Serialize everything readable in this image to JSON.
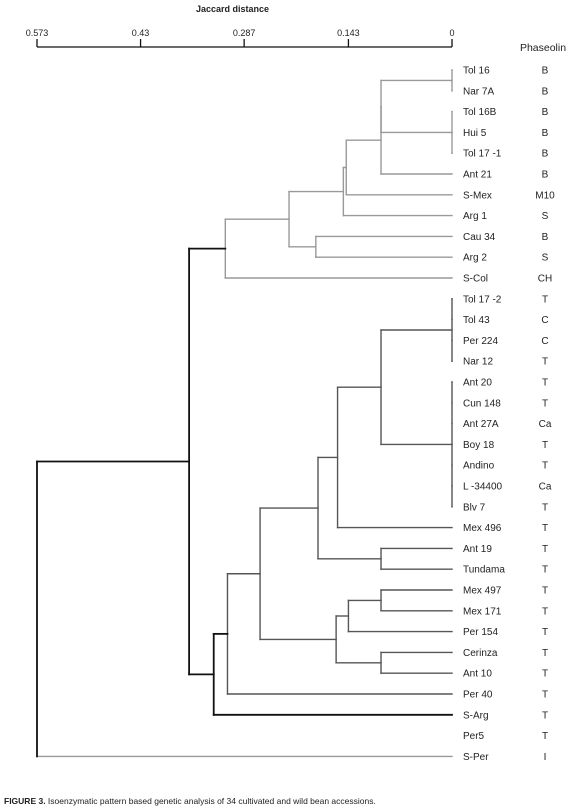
{
  "figure": {
    "axis_title": "Jaccard distance",
    "ticks": [
      "0.573",
      "0.43",
      "0.287",
      "0.143",
      "0"
    ],
    "phaseolin_header": "Phaseolin",
    "caption_label": "FIGURE 3.",
    "caption_text": " Isoenzymatic pattern based genetic analysis of 34 cultivated and wild bean accessions."
  },
  "chart_data": {
    "type": "dendrogram",
    "xlabel": "Jaccard distance",
    "xlim": [
      0.573,
      0
    ],
    "leaves": [
      {
        "name": "Tol 16",
        "phaseolin": "B"
      },
      {
        "name": "Nar 7A",
        "phaseolin": "B"
      },
      {
        "name": "Tol 16B",
        "phaseolin": "B"
      },
      {
        "name": "Hui 5",
        "phaseolin": "B"
      },
      {
        "name": "Tol 17  -1",
        "phaseolin": "B"
      },
      {
        "name": "Ant 21",
        "phaseolin": "B"
      },
      {
        "name": "S-Mex",
        "phaseolin": "M10"
      },
      {
        "name": "Arg 1",
        "phaseolin": "S"
      },
      {
        "name": "Cau 34",
        "phaseolin": "B"
      },
      {
        "name": "Arg 2",
        "phaseolin": "S"
      },
      {
        "name": "S-Col",
        "phaseolin": "CH"
      },
      {
        "name": "Tol 17  -2",
        "phaseolin": "T"
      },
      {
        "name": "Tol 43",
        "phaseolin": "C"
      },
      {
        "name": "Per 224",
        "phaseolin": "C"
      },
      {
        "name": "Nar 12",
        "phaseolin": "T"
      },
      {
        "name": "Ant 20",
        "phaseolin": "T"
      },
      {
        "name": "Cun 148",
        "phaseolin": "T"
      },
      {
        "name": "Ant 27A",
        "phaseolin": "Ca"
      },
      {
        "name": "Boy 18",
        "phaseolin": "T"
      },
      {
        "name": "Andino",
        "phaseolin": "T"
      },
      {
        "name": "L -34400",
        "phaseolin": "Ca"
      },
      {
        "name": "Blv 7",
        "phaseolin": "T"
      },
      {
        "name": "Mex 496",
        "phaseolin": "T"
      },
      {
        "name": "Ant 19",
        "phaseolin": "T"
      },
      {
        "name": "Tundama",
        "phaseolin": "T"
      },
      {
        "name": "Mex 497",
        "phaseolin": "T"
      },
      {
        "name": "Mex 171",
        "phaseolin": "T"
      },
      {
        "name": "Per 154",
        "phaseolin": "T"
      },
      {
        "name": "Cerinza",
        "phaseolin": "T"
      },
      {
        "name": "Ant 10",
        "phaseolin": "T"
      },
      {
        "name": "Per 40",
        "phaseolin": "T"
      },
      {
        "name": "S-Arg",
        "phaseolin": "T"
      },
      {
        "name": "Per5",
        "phaseolin": "T"
      },
      {
        "name": "S-Per",
        "phaseolin": "I"
      }
    ],
    "tree": {
      "d": 0.573,
      "color": "#111",
      "c": [
        {
          "d": 0.363,
          "color": "#111",
          "c": [
            {
              "d": 0.313,
              "color": "#999",
              "c": [
                {
                  "d": 0.225,
                  "color": "#999",
                  "c": [
                    {
                      "d": 0.15,
                      "color": "#999",
                      "c": [
                        {
                          "d": 0.146,
                          "color": "#999",
                          "c": [
                            {
                              "d": 0.098,
                              "color": "#999",
                              "c": [
                                {
                                  "d": 0.098,
                                  "color": "#999",
                                  "c": [
                                    {
                                      "d": 0.0,
                                      "color": "#999",
                                      "c": [
                                        0,
                                        1
                                      ]
                                    },
                                    {
                                      "d": 0.0,
                                      "color": "#999",
                                      "c": [
                                        2,
                                        3,
                                        4
                                      ]
                                    }
                                  ]
                                },
                                5
                              ]
                            },
                            6
                          ]
                        },
                        7
                      ]
                    },
                    {
                      "d": 0.188,
                      "color": "#999",
                      "c": [
                        8,
                        9
                      ]
                    }
                  ]
                },
                10
              ]
            },
            {
              "d": 0.329,
              "color": "#111",
              "c": [
                {
                  "d": 0.31,
                  "color": "#555",
                  "c": [
                    {
                      "d": 0.265,
                      "color": "#555",
                      "c": [
                        {
                          "d": 0.185,
                          "color": "#555",
                          "c": [
                            {
                              "d": 0.158,
                              "color": "#555",
                              "c": [
                                {
                                  "d": 0.098,
                                  "color": "#555",
                                  "c": [
                                    {
                                      "d": 0.0,
                                      "color": "#555",
                                      "c": [
                                        11,
                                        12,
                                        13,
                                        14
                                      ]
                                    },
                                    {
                                      "d": 0.0,
                                      "color": "#555",
                                      "c": [
                                        15,
                                        16,
                                        17,
                                        18,
                                        19,
                                        20,
                                        21
                                      ]
                                    }
                                  ]
                                },
                                22
                              ]
                            },
                            {
                              "d": 0.098,
                              "color": "#555",
                              "c": [
                                23,
                                24
                              ]
                            }
                          ]
                        },
                        {
                          "d": 0.16,
                          "color": "#555",
                          "c": [
                            {
                              "d": 0.143,
                              "color": "#555",
                              "c": [
                                {
                                  "d": 0.098,
                                  "color": "#555",
                                  "c": [
                                    25,
                                    26
                                  ]
                                },
                                27
                              ]
                            },
                            {
                              "d": 0.098,
                              "color": "#555",
                              "c": [
                                28,
                                29
                              ]
                            }
                          ]
                        }
                      ]
                    },
                    30
                  ]
                },
                31
              ]
            }
          ]
        },
        {
          "d": 0.363,
          "color": "#111",
          "c": [
            32
          ]
        }
      ]
    },
    "outgroup_joins_at": 0.573
  }
}
